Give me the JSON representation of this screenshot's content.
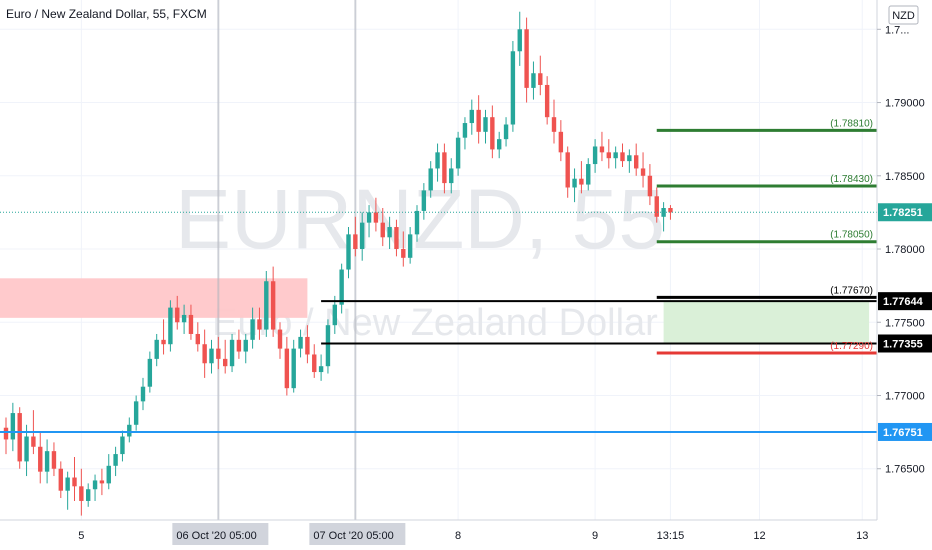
{
  "header": {
    "title": "Euro / New Zealand Dollar, 55, FXCM",
    "currency_badge": "NZD"
  },
  "watermark": {
    "symbol": "EURNZD, 55",
    "name": "Euro / New Zealand Dollar"
  },
  "chart_data": {
    "type": "candlestick",
    "title": "Euro / New Zealand Dollar, 55, FXCM",
    "ylim": [
      1.7615,
      1.797
    ],
    "y_ticks": [
      {
        "value": 1.765,
        "label": "1.76500"
      },
      {
        "value": 1.77,
        "label": "1.77000"
      },
      {
        "value": 1.775,
        "label": "1.77500"
      },
      {
        "value": 1.78,
        "label": "1.78000"
      },
      {
        "value": 1.785,
        "label": "1.78500"
      },
      {
        "value": 1.79,
        "label": "1.79000"
      },
      {
        "value": 1.795,
        "label": "1.7..."
      }
    ],
    "x_ticks": [
      {
        "label": "5",
        "bar": 11
      },
      {
        "label": "06 Oct '20   05:00",
        "bar": 31,
        "highlighted": true
      },
      {
        "label": "07 Oct '20   05:00",
        "bar": 51,
        "highlighted": true
      },
      {
        "label": "8",
        "bar": 66
      },
      {
        "label": "9",
        "bar": 86
      },
      {
        "label": "13:15",
        "bar": 97
      },
      {
        "label": "12",
        "bar": 110
      },
      {
        "label": "13",
        "bar": 125
      }
    ],
    "vertical_markers": [
      31,
      51
    ],
    "candles": [
      [
        1.7678,
        1.7685,
        1.766,
        1.767
      ],
      [
        1.767,
        1.7695,
        1.7662,
        1.7688
      ],
      [
        1.7688,
        1.7692,
        1.765,
        1.7655
      ],
      [
        1.7655,
        1.768,
        1.7645,
        1.7672
      ],
      [
        1.7672,
        1.769,
        1.766,
        1.7665
      ],
      [
        1.7665,
        1.7675,
        1.764,
        1.7648
      ],
      [
        1.7648,
        1.767,
        1.764,
        1.7662
      ],
      [
        1.7662,
        1.7668,
        1.7645,
        1.765
      ],
      [
        1.765,
        1.7655,
        1.763,
        1.7635
      ],
      [
        1.7635,
        1.7648,
        1.7622,
        1.7644
      ],
      [
        1.7644,
        1.7658,
        1.7628,
        1.7638
      ],
      [
        1.7638,
        1.765,
        1.7618,
        1.7628
      ],
      [
        1.7628,
        1.764,
        1.7624,
        1.7636
      ],
      [
        1.7636,
        1.7646,
        1.7628,
        1.7642
      ],
      [
        1.7642,
        1.765,
        1.7632,
        1.764
      ],
      [
        1.764,
        1.766,
        1.7636,
        1.7652
      ],
      [
        1.7652,
        1.7665,
        1.7645,
        1.766
      ],
      [
        1.766,
        1.7676,
        1.7655,
        1.7672
      ],
      [
        1.7672,
        1.7685,
        1.7668,
        1.768
      ],
      [
        1.768,
        1.77,
        1.7676,
        1.7696
      ],
      [
        1.7696,
        1.7712,
        1.769,
        1.7706
      ],
      [
        1.7706,
        1.773,
        1.7702,
        1.7725
      ],
      [
        1.7725,
        1.7742,
        1.772,
        1.7738
      ],
      [
        1.7738,
        1.7752,
        1.7728,
        1.7735
      ],
      [
        1.7735,
        1.7765,
        1.773,
        1.776
      ],
      [
        1.776,
        1.7768,
        1.7745,
        1.775
      ],
      [
        1.775,
        1.7762,
        1.7742,
        1.7755
      ],
      [
        1.7755,
        1.7762,
        1.7738,
        1.7742
      ],
      [
        1.7742,
        1.775,
        1.773,
        1.7735
      ],
      [
        1.7735,
        1.7745,
        1.7712,
        1.7722
      ],
      [
        1.7722,
        1.7738,
        1.7715,
        1.7732
      ],
      [
        1.7732,
        1.774,
        1.7718,
        1.7725
      ],
      [
        1.7725,
        1.7738,
        1.7715,
        1.772
      ],
      [
        1.772,
        1.7742,
        1.7716,
        1.7738
      ],
      [
        1.7738,
        1.7745,
        1.7725,
        1.773
      ],
      [
        1.773,
        1.7742,
        1.7722,
        1.7738
      ],
      [
        1.7738,
        1.776,
        1.7732,
        1.7752
      ],
      [
        1.7752,
        1.776,
        1.7738,
        1.7745
      ],
      [
        1.7745,
        1.7785,
        1.774,
        1.7778
      ],
      [
        1.7778,
        1.7788,
        1.774,
        1.7745
      ],
      [
        1.7745,
        1.775,
        1.7725,
        1.7732
      ],
      [
        1.7732,
        1.774,
        1.77,
        1.7705
      ],
      [
        1.7705,
        1.7738,
        1.7702,
        1.7732
      ],
      [
        1.7732,
        1.7745,
        1.7726,
        1.774
      ],
      [
        1.774,
        1.7748,
        1.7722,
        1.7728
      ],
      [
        1.7728,
        1.7735,
        1.7712,
        1.7716
      ],
      [
        1.7716,
        1.7728,
        1.771,
        1.772
      ],
      [
        1.772,
        1.7752,
        1.7715,
        1.7748
      ],
      [
        1.7748,
        1.7768,
        1.7742,
        1.7762
      ],
      [
        1.7762,
        1.779,
        1.7756,
        1.7786
      ],
      [
        1.7786,
        1.7815,
        1.778,
        1.781
      ],
      [
        1.781,
        1.7822,
        1.7795,
        1.78
      ],
      [
        1.78,
        1.7825,
        1.7792,
        1.7818
      ],
      [
        1.7818,
        1.783,
        1.7808,
        1.7825
      ],
      [
        1.7825,
        1.7835,
        1.7812,
        1.7818
      ],
      [
        1.7818,
        1.7828,
        1.7802,
        1.7808
      ],
      [
        1.7808,
        1.7822,
        1.78,
        1.7815
      ],
      [
        1.7815,
        1.782,
        1.7795,
        1.78
      ],
      [
        1.78,
        1.7812,
        1.7788,
        1.7794
      ],
      [
        1.7794,
        1.7815,
        1.779,
        1.781
      ],
      [
        1.781,
        1.783,
        1.7805,
        1.7826
      ],
      [
        1.7826,
        1.7845,
        1.782,
        1.784
      ],
      [
        1.784,
        1.786,
        1.7835,
        1.7855
      ],
      [
        1.7855,
        1.7872,
        1.7846,
        1.7866
      ],
      [
        1.7866,
        1.7872,
        1.7838,
        1.7845
      ],
      [
        1.7845,
        1.7862,
        1.7838,
        1.7855
      ],
      [
        1.7855,
        1.788,
        1.785,
        1.7876
      ],
      [
        1.7876,
        1.789,
        1.7868,
        1.7886
      ],
      [
        1.7886,
        1.7902,
        1.7878,
        1.7895
      ],
      [
        1.7895,
        1.7905,
        1.7872,
        1.788
      ],
      [
        1.788,
        1.7895,
        1.7872,
        1.789
      ],
      [
        1.789,
        1.7898,
        1.7862,
        1.7868
      ],
      [
        1.7868,
        1.788,
        1.7862,
        1.7875
      ],
      [
        1.7875,
        1.789,
        1.787,
        1.7885
      ],
      [
        1.7885,
        1.7942,
        1.788,
        1.7935
      ],
      [
        1.7935,
        1.7962,
        1.7925,
        1.795
      ],
      [
        1.795,
        1.7958,
        1.79,
        1.791
      ],
      [
        1.791,
        1.7928,
        1.7902,
        1.792
      ],
      [
        1.792,
        1.7932,
        1.7905,
        1.7912
      ],
      [
        1.7912,
        1.7918,
        1.7885,
        1.789
      ],
      [
        1.789,
        1.7902,
        1.7872,
        1.788
      ],
      [
        1.788,
        1.7888,
        1.786,
        1.7866
      ],
      [
        1.7866,
        1.787,
        1.7835,
        1.7842
      ],
      [
        1.7842,
        1.7855,
        1.7832,
        1.7848
      ],
      [
        1.7848,
        1.786,
        1.7838,
        1.7844
      ],
      [
        1.7844,
        1.7862,
        1.784,
        1.7858
      ],
      [
        1.7858,
        1.7875,
        1.7852,
        1.787
      ],
      [
        1.787,
        1.788,
        1.786,
        1.7866
      ],
      [
        1.7866,
        1.7875,
        1.7855,
        1.7862
      ],
      [
        1.7862,
        1.787,
        1.7855,
        1.7866
      ],
      [
        1.7866,
        1.7872,
        1.7856,
        1.786
      ],
      [
        1.786,
        1.7868,
        1.7852,
        1.7864
      ],
      [
        1.7864,
        1.7872,
        1.785,
        1.7855
      ],
      [
        1.7855,
        1.7866,
        1.7842,
        1.785
      ],
      [
        1.785,
        1.7858,
        1.783,
        1.7836
      ],
      [
        1.7836,
        1.7842,
        1.7818,
        1.7822
      ],
      [
        1.7822,
        1.7832,
        1.7812,
        1.7828
      ],
      [
        1.7828,
        1.783,
        1.782,
        1.7825
      ]
    ],
    "horizontal_levels": [
      {
        "price": 1.7881,
        "label": "(1.78810)",
        "color": "#2e7d32",
        "from_bar": 95
      },
      {
        "price": 1.7843,
        "label": "(1.78430)",
        "color": "#2e7d32",
        "from_bar": 95
      },
      {
        "price": 1.7805,
        "label": "(1.78050)",
        "color": "#2e7d32",
        "from_bar": 95
      },
      {
        "price": 1.7767,
        "label": "(1.77670)",
        "color": "#000000",
        "from_bar": 95
      },
      {
        "price": 1.7729,
        "label": "(1.77290)",
        "color": "#e53935",
        "from_bar": 95
      }
    ],
    "box_lines": [
      {
        "price": 1.77644,
        "from_bar": 46,
        "color": "#000000"
      },
      {
        "price": 1.77355,
        "from_bar": 46,
        "color": "#000000"
      }
    ],
    "zones": [
      {
        "top": 1.778,
        "bottom": 1.7753,
        "from_bar": -2,
        "to_bar": 44,
        "color": "#ffc7c9"
      },
      {
        "top": 1.77644,
        "bottom": 1.77355,
        "from_bar": 96,
        "to_bar": 126,
        "color": "#d8efd6"
      }
    ],
    "support_line": {
      "price": 1.76751,
      "color": "#2196f3"
    },
    "current_price": 1.78251,
    "price_tags": [
      {
        "price": 1.78251,
        "label": "1.78251",
        "bg": "#26a69a"
      },
      {
        "price": 1.77644,
        "label": "1.77644",
        "bg": "#000000"
      },
      {
        "price": 1.77355,
        "label": "1.77355",
        "bg": "#000000"
      },
      {
        "price": 1.76751,
        "label": "1.76751",
        "bg": "#2196f3"
      }
    ],
    "colors": {
      "up": "#26a69a",
      "down": "#ef5350",
      "grid": "#f0f3fa",
      "axis_text": "#131722"
    }
  }
}
